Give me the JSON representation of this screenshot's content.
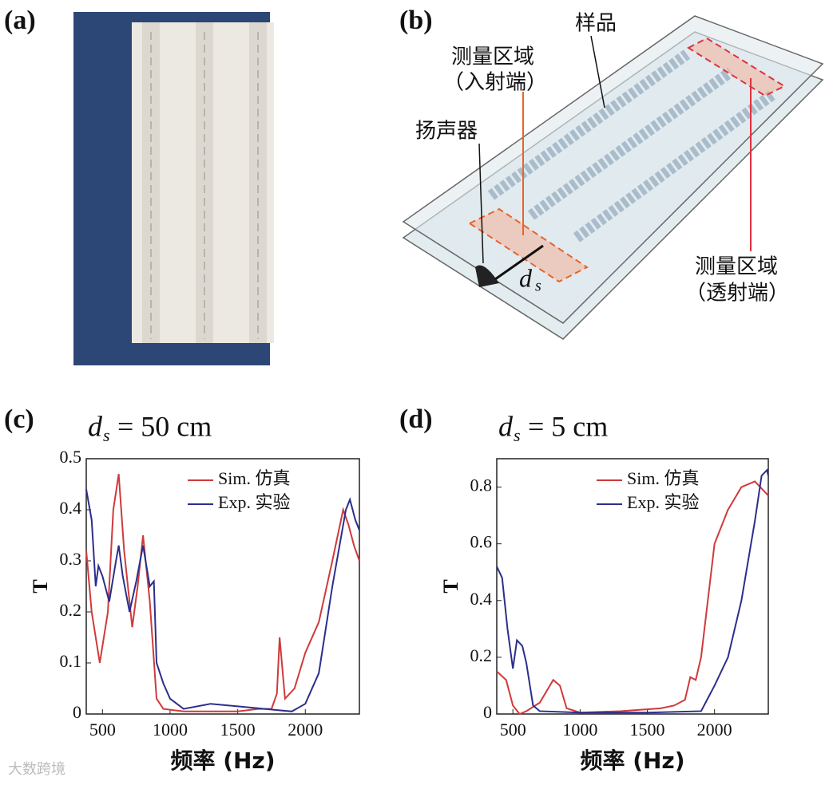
{
  "panels": [
    "(a)",
    "(b)",
    "(c)",
    "(d)"
  ],
  "diagram": {
    "sample": "样品",
    "incident": [
      "测量区域",
      "（入射端）"
    ],
    "speaker": "扬声器",
    "transmit": [
      "测量区域",
      "（透射端）"
    ],
    "distance": [
      "d",
      "s"
    ]
  },
  "watermark": "大数跨境",
  "chart_data": [
    {
      "type": "line",
      "title": [
        "d",
        "s",
        " = 50 cm"
      ],
      "xlabel": "频率 (Hz)",
      "ylabel": "T",
      "xlim": [
        380,
        2400
      ],
      "ylim": [
        0,
        0.5
      ],
      "xticks": [
        500,
        1000,
        1500,
        2000
      ],
      "yticks": [
        0,
        0.1,
        0.2,
        0.3,
        0.4,
        0.5
      ],
      "legend": "upper right",
      "series": [
        {
          "name": "Sim. 仿真",
          "color": "#d03a3a",
          "x": [
            380,
            420,
            480,
            540,
            580,
            620,
            660,
            720,
            760,
            800,
            850,
            900,
            950,
            1100,
            1300,
            1500,
            1650,
            1750,
            1790,
            1810,
            1850,
            1920,
            2000,
            2100,
            2200,
            2280,
            2320,
            2360,
            2400
          ],
          "values": [
            0.32,
            0.2,
            0.1,
            0.2,
            0.4,
            0.47,
            0.32,
            0.17,
            0.25,
            0.35,
            0.22,
            0.03,
            0.01,
            0.005,
            0.005,
            0.005,
            0.01,
            0.01,
            0.04,
            0.15,
            0.03,
            0.05,
            0.12,
            0.18,
            0.3,
            0.4,
            0.37,
            0.33,
            0.3
          ]
        },
        {
          "name": "Exp. 实验",
          "color": "#2b2f8c",
          "x": [
            380,
            420,
            450,
            470,
            500,
            550,
            600,
            620,
            650,
            700,
            750,
            800,
            850,
            880,
            900,
            950,
            1000,
            1100,
            1300,
            1500,
            1700,
            1900,
            2000,
            2100,
            2200,
            2300,
            2330,
            2370,
            2400
          ],
          "values": [
            0.44,
            0.38,
            0.25,
            0.29,
            0.27,
            0.22,
            0.3,
            0.33,
            0.27,
            0.2,
            0.26,
            0.33,
            0.25,
            0.26,
            0.1,
            0.06,
            0.03,
            0.01,
            0.02,
            0.015,
            0.01,
            0.005,
            0.02,
            0.08,
            0.25,
            0.4,
            0.42,
            0.38,
            0.36
          ]
        }
      ]
    },
    {
      "type": "line",
      "title": [
        "d",
        "s",
        " = 5 cm"
      ],
      "xlabel": "频率 (Hz)",
      "ylabel": "T",
      "xlim": [
        380,
        2400
      ],
      "ylim": [
        0,
        0.9
      ],
      "xticks": [
        500,
        1000,
        1500,
        2000
      ],
      "yticks": [
        0,
        0.2,
        0.4,
        0.6,
        0.8
      ],
      "legend": "upper right",
      "series": [
        {
          "name": "Sim. 仿真",
          "color": "#d03a3a",
          "x": [
            380,
            450,
            500,
            550,
            600,
            700,
            800,
            850,
            900,
            1000,
            1300,
            1600,
            1700,
            1780,
            1820,
            1860,
            1900,
            2000,
            2100,
            2200,
            2300,
            2400
          ],
          "values": [
            0.15,
            0.12,
            0.03,
            0.0,
            0.01,
            0.04,
            0.12,
            0.1,
            0.02,
            0.005,
            0.01,
            0.02,
            0.03,
            0.05,
            0.13,
            0.12,
            0.2,
            0.6,
            0.72,
            0.8,
            0.82,
            0.77
          ]
        },
        {
          "name": "Exp. 实验",
          "color": "#2b2f8c",
          "x": [
            380,
            420,
            460,
            500,
            530,
            570,
            600,
            650,
            700,
            1000,
            1500,
            1900,
            2000,
            2100,
            2200,
            2300,
            2350,
            2390,
            2400
          ],
          "values": [
            0.52,
            0.48,
            0.3,
            0.16,
            0.26,
            0.24,
            0.18,
            0.03,
            0.01,
            0.005,
            0.005,
            0.01,
            0.1,
            0.2,
            0.4,
            0.68,
            0.84,
            0.86,
            0.84
          ]
        }
      ]
    }
  ]
}
